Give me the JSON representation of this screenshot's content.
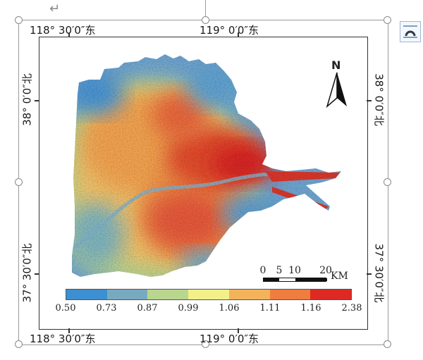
{
  "coords": {
    "lon_west": "118° 30′0″东",
    "lon_east": "119° 0′0″东",
    "lat_north": "38° 0′0″北",
    "lat_south": "37° 30′0″北"
  },
  "north_arrow": {
    "label": "N"
  },
  "scale_bar": {
    "labels": [
      "0",
      "5",
      "10",
      "20"
    ],
    "unit": "KM"
  },
  "legend": {
    "ticks": [
      "0.50",
      "0.73",
      "0.87",
      "0.99",
      "1.06",
      "1.11",
      "1.16",
      "2.38"
    ],
    "colors": [
      "#3d8fd1",
      "#78aabf",
      "#b9d68e",
      "#f3f08a",
      "#f2b35a",
      "#ef7d3e",
      "#dc2a22"
    ]
  },
  "doc": {
    "return_mark": "↵",
    "layout_icon": "text-wrap-layout-icon"
  }
}
